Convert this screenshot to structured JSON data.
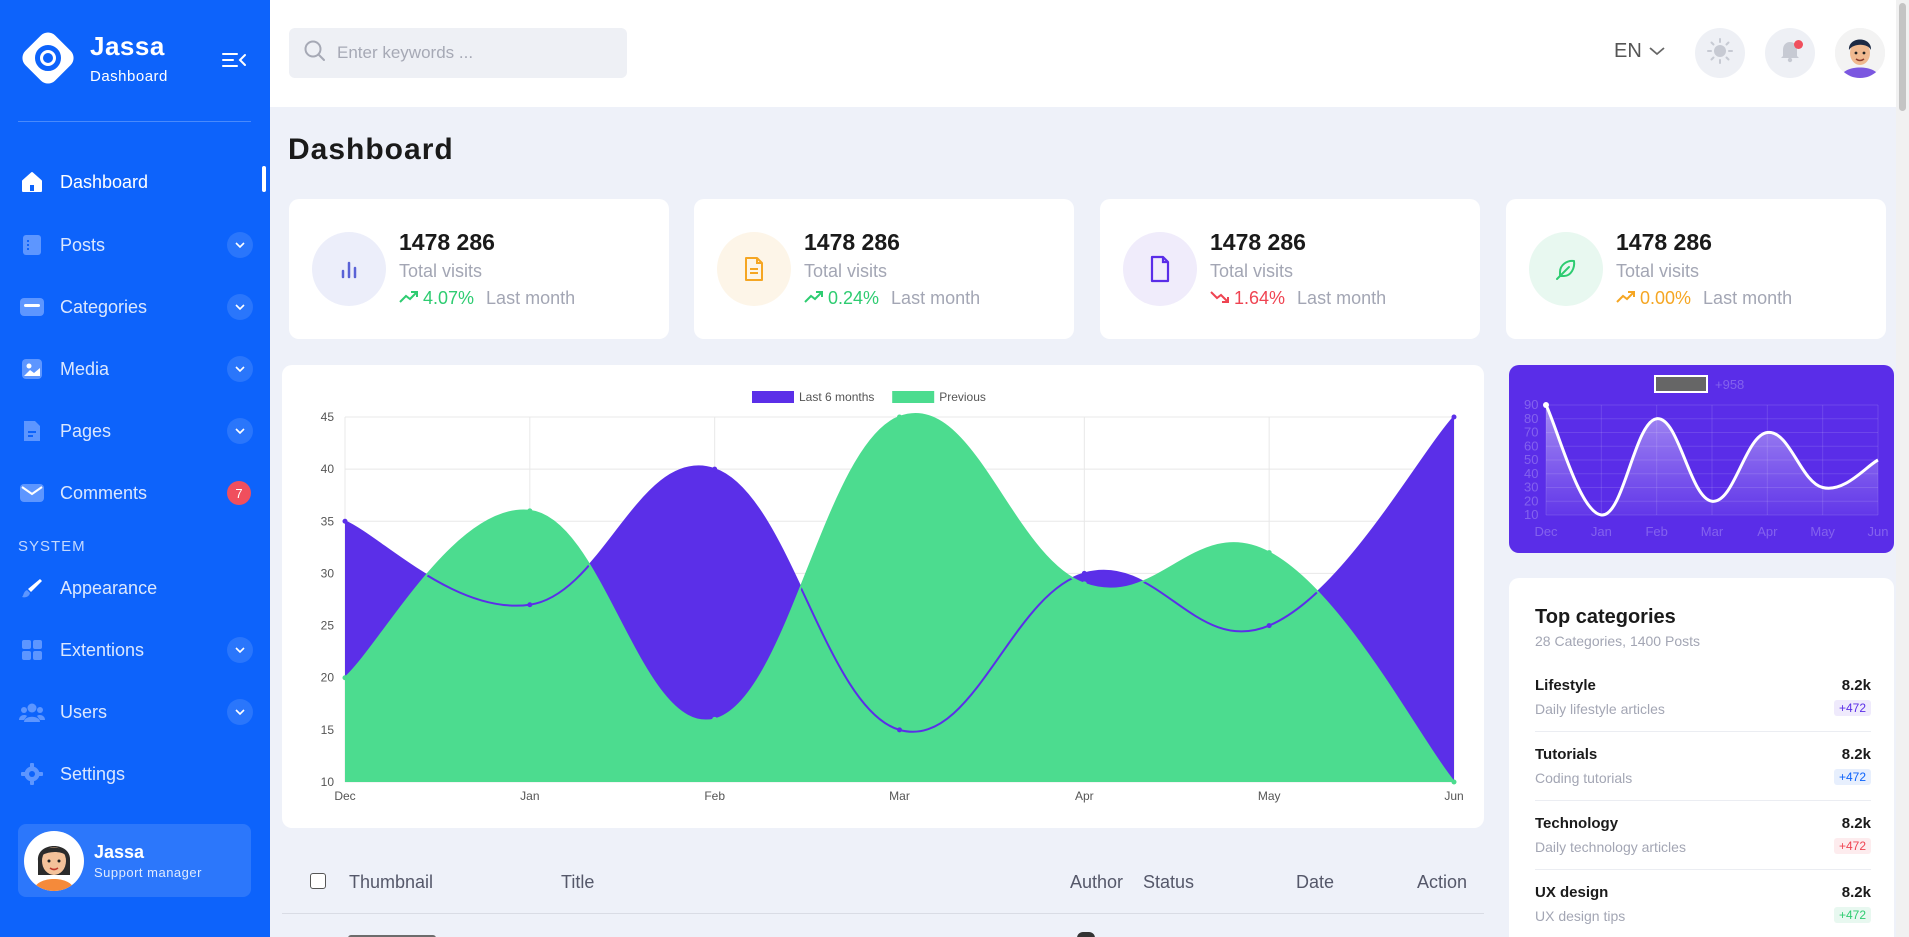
{
  "brand": {
    "name": "Jassa",
    "subtitle": "Dashboard"
  },
  "sidebar": {
    "items": [
      {
        "label": "Dashboard",
        "icon": "home-icon",
        "active": true
      },
      {
        "label": "Posts",
        "icon": "list-icon",
        "expandable": true
      },
      {
        "label": "Categories",
        "icon": "folder-icon",
        "expandable": true
      },
      {
        "label": "Media",
        "icon": "image-icon",
        "expandable": true
      },
      {
        "label": "Pages",
        "icon": "file-icon",
        "expandable": true
      },
      {
        "label": "Comments",
        "icon": "mail-icon",
        "badge": "7"
      }
    ],
    "section_label": "SYSTEM",
    "system_items": [
      {
        "label": "Appearance",
        "icon": "brush-icon"
      },
      {
        "label": "Extentions",
        "icon": "grid-icon",
        "expandable": true
      },
      {
        "label": "Users",
        "icon": "users-icon",
        "expandable": true
      },
      {
        "label": "Settings",
        "icon": "gear-icon"
      }
    ],
    "profile": {
      "name": "Jassa",
      "role": "Support manager"
    }
  },
  "header": {
    "search_placeholder": "Enter keywords ...",
    "language": "EN"
  },
  "page": {
    "title": "Dashboard"
  },
  "stats": [
    {
      "value": "1478 286",
      "label": "Total visits",
      "change": "4.07%",
      "period": "Last month",
      "trend": "up",
      "color": "#2ecc71",
      "icon_bg": "#eceefa",
      "icon_color": "#5a62d6",
      "icon": "bar-chart-icon"
    },
    {
      "value": "1478 286",
      "label": "Total visits",
      "change": "0.24%",
      "period": "Last month",
      "trend": "up",
      "color": "#2ecc71",
      "icon_bg": "#fdf5e8",
      "icon_color": "#f5a623",
      "icon": "document-icon"
    },
    {
      "value": "1478 286",
      "label": "Total visits",
      "change": "1.64%",
      "period": "Last month",
      "trend": "down",
      "color": "#ef4452",
      "icon_bg": "#f0ecfb",
      "icon_color": "#5a2de8",
      "icon": "file-icon"
    },
    {
      "value": "1478 286",
      "label": "Total visits",
      "change": "0.00%",
      "period": "Last month",
      "trend": "up",
      "color": "#f5a623",
      "icon_bg": "#e8f8f0",
      "icon_color": "#2ecc71",
      "icon": "feather-icon"
    }
  ],
  "chart_data": [
    {
      "type": "area",
      "categories": [
        "Dec",
        "Jan",
        "Feb",
        "Mar",
        "Apr",
        "May",
        "Jun"
      ],
      "series": [
        {
          "name": "Last 6 months",
          "values": [
            35,
            27,
            40,
            15,
            30,
            25,
            45
          ],
          "color": "#5b2fe8"
        },
        {
          "name": "Previous",
          "values": [
            20,
            36,
            16,
            45,
            29,
            32,
            10
          ],
          "color": "#4cdc8f"
        }
      ],
      "ylim": [
        10,
        45
      ],
      "yticks": [
        10,
        15,
        20,
        25,
        30,
        35,
        40,
        45
      ],
      "legend": "top-center",
      "grid": true
    },
    {
      "type": "line",
      "categories": [
        "Dec",
        "Jan",
        "Feb",
        "Mar",
        "Apr",
        "May",
        "Jun"
      ],
      "series": [
        {
          "values": [
            90,
            10,
            80,
            20,
            70,
            30,
            50
          ],
          "color": "#ffffff"
        }
      ],
      "legend_value": "+958",
      "ylim": [
        10,
        90
      ],
      "yticks": [
        10,
        20,
        30,
        40,
        50,
        60,
        70,
        80,
        90
      ],
      "grid": true
    }
  ],
  "categories_card": {
    "title": "Top categories",
    "subtitle": "28 Categories, 1400 Posts",
    "items": [
      {
        "name": "Lifestyle",
        "desc": "Daily lifestyle articles",
        "value": "8.2k",
        "badge": "+472",
        "badge_color": "#5a2de8",
        "badge_bg": "#efeafc"
      },
      {
        "name": "Tutorials",
        "desc": "Coding tutorials",
        "value": "8.2k",
        "badge": "+472",
        "badge_color": "#0d63fb",
        "badge_bg": "#e7effd"
      },
      {
        "name": "Technology",
        "desc": "Daily technology articles",
        "value": "8.2k",
        "badge": "+472",
        "badge_color": "#ef4452",
        "badge_bg": "#fdecee"
      },
      {
        "name": "UX design",
        "desc": "UX design tips",
        "value": "8.2k",
        "badge": "+472",
        "badge_color": "#2ecc71",
        "badge_bg": "#e8f8f0"
      }
    ]
  },
  "table": {
    "columns": [
      "Thumbnail",
      "Title",
      "Author",
      "Status",
      "Date",
      "Action"
    ]
  }
}
